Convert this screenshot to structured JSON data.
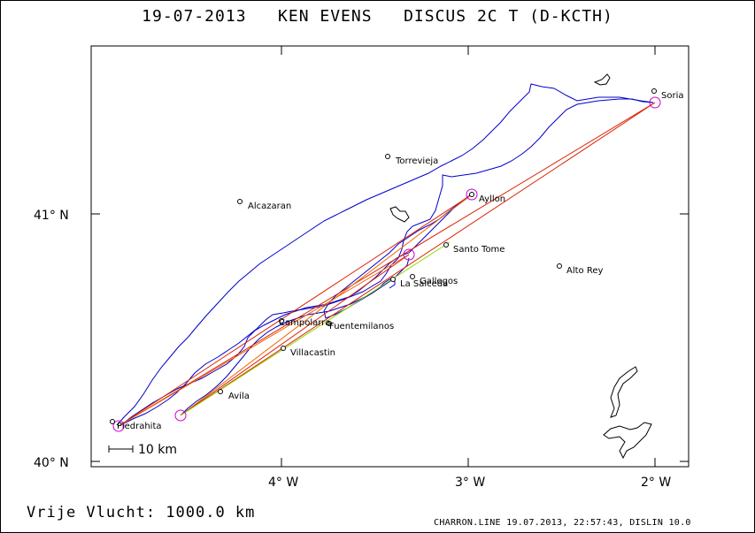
{
  "title": "19-07-2013   KEN EVENS   DISCUS 2C T (D-KCTH)",
  "footer": {
    "distance": "Vrije Vlucht: 1000.0 km",
    "credits": "CHARRON.LINE 19.07.2013, 22:57:43, DISLIN 10.0"
  },
  "axes": {
    "x_ticks": [
      {
        "label": "4° W",
        "value": -4
      },
      {
        "label": "3° W",
        "value": -3
      },
      {
        "label": "2° W",
        "value": -2
      }
    ],
    "y_ticks": [
      {
        "label": "41° N",
        "value": 41
      },
      {
        "label": "40° N",
        "value": 40
      }
    ],
    "lon_range": [
      -5.02,
      -1.82
    ],
    "lat_range": [
      39.98,
      41.68
    ]
  },
  "scale_bar": {
    "label": "10 km"
  },
  "places": [
    {
      "name": "Soria",
      "lon": -2.02,
      "lat": 41.49
    },
    {
      "name": "Torrevieja",
      "lon": -3.42,
      "lat": 41.23
    },
    {
      "name": "Alcazaran",
      "lon": -4.22,
      "lat": 41.06
    },
    {
      "name": "Ayllon",
      "lon": -2.98,
      "lat": 41.09
    },
    {
      "name": "Santo Tome",
      "lon": -3.13,
      "lat": 40.87
    },
    {
      "name": "Alto Rey",
      "lon": -2.53,
      "lat": 40.78
    },
    {
      "name": "Gallegos",
      "lon": -3.33,
      "lat": 40.74
    },
    {
      "name": "La Salceda",
      "lon": -3.37,
      "lat": 40.72
    },
    {
      "name": "Campolarra",
      "lon": -3.99,
      "lat": 40.57
    },
    {
      "name": "Fuentemilanos",
      "lon": -3.77,
      "lat": 40.55
    },
    {
      "name": "Villacastin",
      "lon": -4.0,
      "lat": 40.46
    },
    {
      "name": "Avila",
      "lon": -4.33,
      "lat": 40.29
    },
    {
      "name": "Piedrahita",
      "lon": -4.93,
      "lat": 40.16
    }
  ],
  "turnpoints": [
    {
      "lon": -2.0,
      "lat": 41.45
    },
    {
      "lon": -2.99,
      "lat": 41.09
    },
    {
      "lon": -3.28,
      "lat": 40.84
    },
    {
      "lon": -4.55,
      "lat": 40.19
    },
    {
      "lon": -4.87,
      "lat": 40.15
    }
  ],
  "colors": {
    "track": "#0000cc",
    "legs_red": "#dd2200",
    "legs_orange": "#ee6600",
    "leg_green": "#88dd00",
    "turnpoint": "#cc00cc",
    "coast": "#000000"
  }
}
